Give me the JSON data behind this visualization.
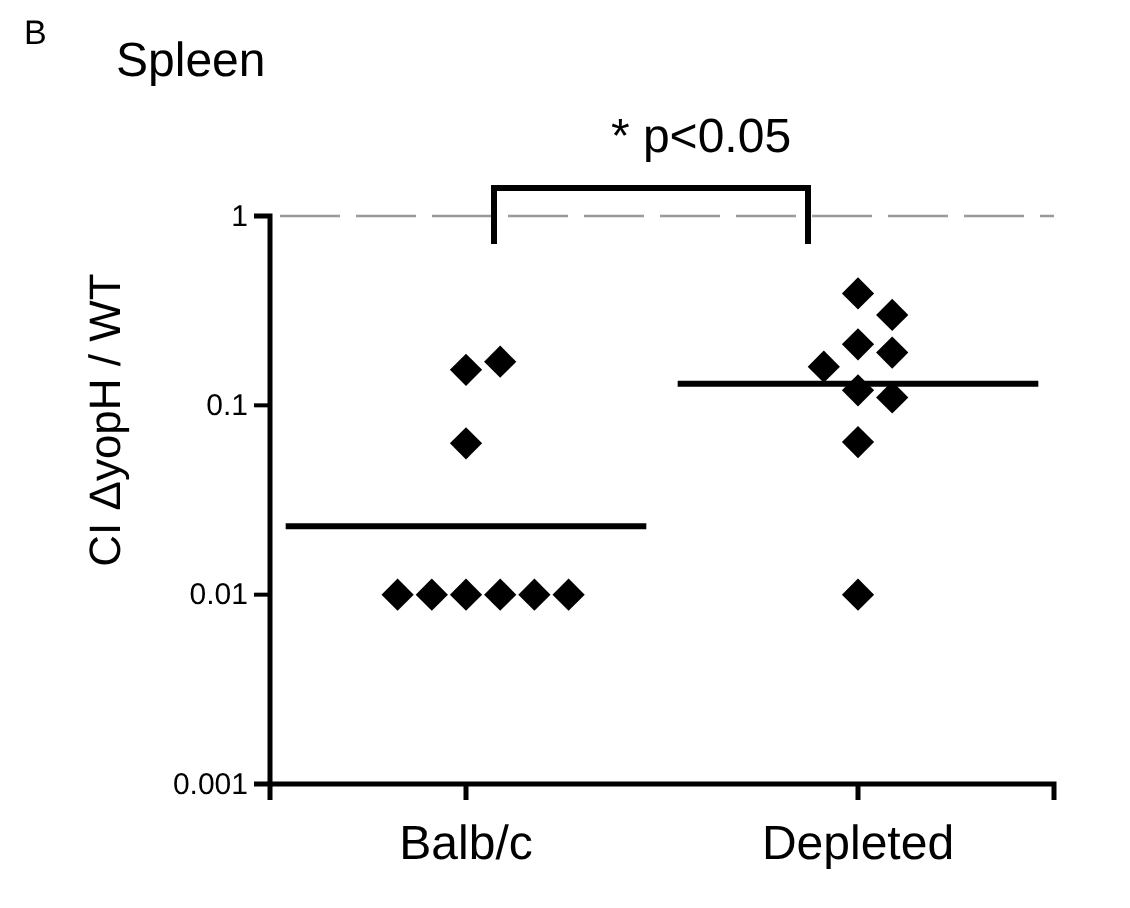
{
  "chart_data": {
    "type": "scatter",
    "title": "Spleen",
    "ylabel": "CI ΔyopH / WT",
    "log": "y",
    "ylim": [
      0.001,
      1
    ],
    "yticks": [
      0.001,
      0.01,
      0.1,
      1
    ],
    "categories": [
      "Balb/c",
      "Depleted"
    ],
    "marker": "diamond",
    "annotations": [
      "B",
      "* p<0.05"
    ],
    "ref_lines": [
      {
        "axis": "y",
        "value": 1,
        "color": "#999999",
        "line_style": "dashed"
      },
      {
        "axis": "y",
        "value": 0.023,
        "color": "#000000",
        "line_style": "solid"
      },
      {
        "axis": "y",
        "value": 0.13,
        "color": "#000000",
        "line_style": "solid"
      }
    ],
    "series": [
      {
        "color": "#000000",
        "x": [
          "Balb/c",
          "Balb/c",
          "Balb/c",
          "Balb/c",
          "Balb/c",
          "Balb/c",
          "Balb/c",
          "Balb/c",
          "Balb/c"
        ],
        "values": [
          0.01,
          0.01,
          0.01,
          0.01,
          0.01,
          0.01,
          0.063,
          0.154,
          0.17
        ]
      },
      {
        "color": "#000000",
        "x": [
          "Depleted",
          "Depleted",
          "Depleted",
          "Depleted",
          "Depleted",
          "Depleted",
          "Depleted",
          "Depleted",
          "Depleted"
        ],
        "values": [
          0.21,
          0.3,
          0.39,
          0.19,
          0.16,
          0.12,
          0.11,
          0.064,
          0.01
        ]
      }
    ]
  }
}
